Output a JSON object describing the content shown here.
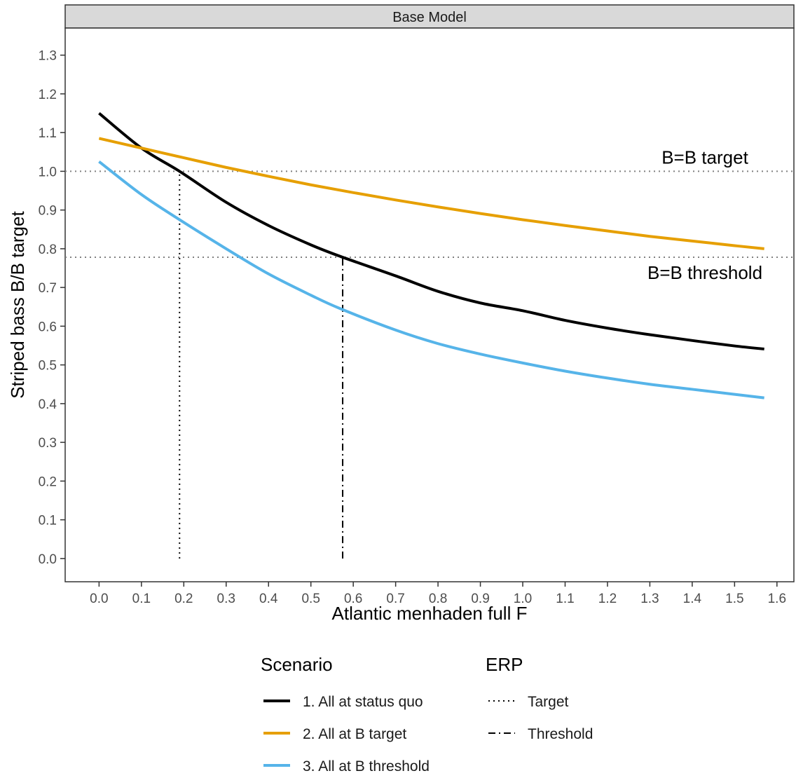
{
  "chart_data": {
    "type": "line",
    "facet_title": "Base Model",
    "xlabel": "Atlantic menhaden full F",
    "ylabel": "Striped bass B/B target",
    "xlim": [
      -0.08,
      1.64
    ],
    "ylim": [
      -0.06,
      1.37
    ],
    "x_ticks": [
      "0.0",
      "0.1",
      "0.2",
      "0.3",
      "0.4",
      "0.5",
      "0.6",
      "0.7",
      "0.8",
      "0.9",
      "1.0",
      "1.1",
      "1.2",
      "1.3",
      "1.4",
      "1.5",
      "1.6"
    ],
    "y_ticks": [
      "0.0",
      "0.1",
      "0.2",
      "0.3",
      "0.4",
      "0.5",
      "0.6",
      "0.7",
      "0.8",
      "0.9",
      "1.0",
      "1.1",
      "1.2",
      "1.3"
    ],
    "grid": false,
    "series": [
      {
        "name": "1. All at status quo",
        "color": "#000000",
        "x": [
          0.0,
          0.1,
          0.19,
          0.3,
          0.4,
          0.5,
          0.57,
          0.7,
          0.8,
          0.9,
          1.0,
          1.1,
          1.2,
          1.3,
          1.4,
          1.5,
          1.57
        ],
        "y": [
          1.15,
          1.06,
          1.0,
          0.92,
          0.86,
          0.81,
          0.78,
          0.73,
          0.69,
          0.66,
          0.64,
          0.615,
          0.595,
          0.578,
          0.563,
          0.549,
          0.541
        ]
      },
      {
        "name": "2. All at B target",
        "color": "#E69F00",
        "x": [
          0.0,
          0.1,
          0.2,
          0.3,
          0.4,
          0.5,
          0.6,
          0.7,
          0.8,
          0.9,
          1.0,
          1.1,
          1.2,
          1.3,
          1.4,
          1.5,
          1.57
        ],
        "y": [
          1.085,
          1.06,
          1.035,
          1.01,
          0.987,
          0.965,
          0.945,
          0.926,
          0.908,
          0.891,
          0.875,
          0.86,
          0.846,
          0.832,
          0.82,
          0.808,
          0.8
        ]
      },
      {
        "name": "3. All at B threshold",
        "color": "#56B4E9",
        "x": [
          0.0,
          0.1,
          0.19,
          0.3,
          0.4,
          0.5,
          0.57,
          0.7,
          0.8,
          0.9,
          1.0,
          1.1,
          1.2,
          1.3,
          1.4,
          1.5,
          1.57
        ],
        "y": [
          1.025,
          0.94,
          0.875,
          0.8,
          0.735,
          0.68,
          0.645,
          0.59,
          0.555,
          0.528,
          0.505,
          0.484,
          0.466,
          0.45,
          0.437,
          0.424,
          0.415
        ]
      }
    ],
    "reference_lines": [
      {
        "value": 1.0,
        "label": "B=B target",
        "label_x": 1.43
      },
      {
        "value": 0.778,
        "label": "B=B threshold",
        "label_x": 1.43
      }
    ],
    "erp_lines": [
      {
        "name": "Target",
        "x": 0.19,
        "y_top": 1.0,
        "dash": "dotted"
      },
      {
        "name": "Threshold",
        "x": 0.575,
        "y_top": 0.778,
        "dash": "dashdot"
      }
    ],
    "legend": {
      "placement": "bottom",
      "scenario_title": "Scenario",
      "erp_title": "ERP"
    }
  }
}
